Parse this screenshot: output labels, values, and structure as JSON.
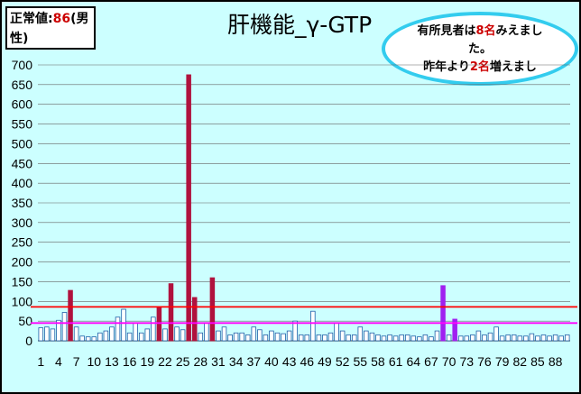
{
  "normal_value": {
    "label_prefix": "正常値:",
    "value": "86",
    "label_suffix_1": "(男",
    "label_suffix_2": "性)"
  },
  "callout": {
    "line1_pre": "有所見者は",
    "line1_num": "8名",
    "line1_post": "みえまし",
    "line2": "た。",
    "line3_pre": "昨年より",
    "line3_num": "2名",
    "line3_post": "増えまし"
  },
  "colors": {
    "background": "#ccffff",
    "bar_normal_fill": "#ffffff",
    "bar_normal_stroke": "#1f5fa8",
    "bar_abnormal": "#b0123e",
    "bar_highlight": "#a020f0",
    "line_normal_value": "#ff0000",
    "line_secondary": "#ff00ff",
    "grid": "#666666"
  },
  "chart_data": {
    "type": "bar",
    "title": "肝機能_γ-GTP",
    "ylim": [
      0,
      700
    ],
    "yticks": [
      0,
      50,
      100,
      150,
      200,
      250,
      300,
      350,
      400,
      450,
      500,
      550,
      600,
      650,
      700
    ],
    "grid": true,
    "xtick_labels": [
      "1",
      "4",
      "7",
      "10",
      "13",
      "16",
      "19",
      "22",
      "25",
      "28",
      "31",
      "34",
      "37",
      "40",
      "43",
      "46",
      "49",
      "52",
      "55",
      "58",
      "61",
      "64",
      "67",
      "70",
      "73",
      "76",
      "79",
      "82",
      "85",
      "88"
    ],
    "x": [
      1,
      2,
      3,
      4,
      5,
      6,
      7,
      8,
      9,
      10,
      11,
      12,
      13,
      14,
      15,
      16,
      17,
      18,
      19,
      20,
      21,
      22,
      23,
      24,
      25,
      26,
      27,
      28,
      29,
      30,
      31,
      32,
      33,
      34,
      35,
      36,
      37,
      38,
      39,
      40,
      41,
      42,
      43,
      44,
      45,
      46,
      47,
      48,
      49,
      50,
      51,
      52,
      53,
      54,
      55,
      56,
      57,
      58,
      59,
      60,
      61,
      62,
      63,
      64,
      65,
      66,
      67,
      68,
      69,
      70,
      71,
      72,
      73,
      74,
      75,
      76,
      77,
      78,
      79,
      80,
      81,
      82,
      83,
      84,
      85,
      86,
      87,
      88,
      89,
      90
    ],
    "values": [
      33,
      35,
      30,
      52,
      72,
      128,
      35,
      12,
      10,
      10,
      20,
      25,
      35,
      60,
      80,
      20,
      45,
      20,
      30,
      60,
      85,
      30,
      145,
      35,
      28,
      675,
      110,
      20,
      45,
      160,
      25,
      35,
      15,
      20,
      20,
      15,
      35,
      28,
      15,
      25,
      20,
      18,
      25,
      50,
      15,
      15,
      75,
      15,
      15,
      20,
      45,
      25,
      15,
      15,
      35,
      25,
      20,
      15,
      12,
      15,
      12,
      15,
      15,
      12,
      10,
      15,
      10,
      25,
      140,
      15,
      55,
      12,
      12,
      15,
      25,
      15,
      20,
      35,
      12,
      15,
      15,
      12,
      12,
      18,
      12,
      15,
      12,
      15,
      12,
      15
    ],
    "bar_groups": {
      "abnormal": [
        6,
        21,
        23,
        26,
        27,
        30
      ],
      "highlight": [
        69,
        71
      ]
    },
    "reference_lines": [
      {
        "value": 86,
        "color": "#ff0000"
      },
      {
        "value": 45,
        "color": "#ff00ff"
      }
    ]
  }
}
